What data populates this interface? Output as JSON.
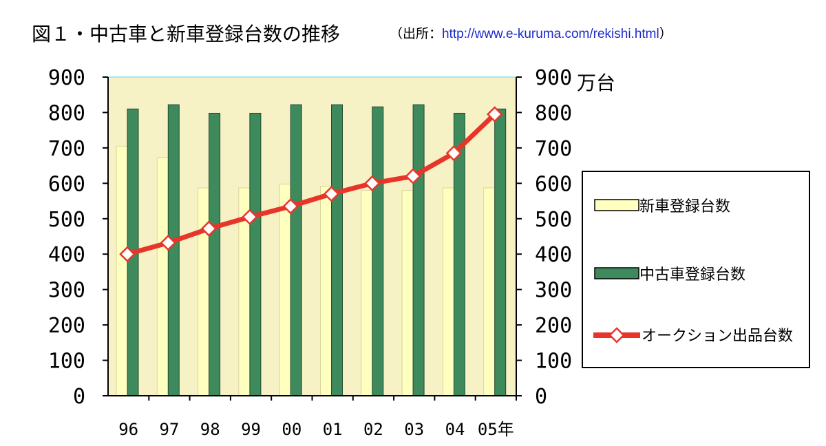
{
  "title": "図１・中古車と新車登録台数の推移",
  "source": {
    "prefix": "（出所：",
    "url": "http://www.e-kuruma.com/rekishi.html",
    "suffix": "）"
  },
  "chart_data": {
    "type": "bar",
    "categories": [
      "96",
      "97",
      "98",
      "99",
      "00",
      "01",
      "02",
      "03",
      "04",
      "05年"
    ],
    "ylim": [
      0,
      900
    ],
    "y_ticks": [
      "0",
      "100",
      "200",
      "300",
      "400",
      "500",
      "600",
      "700",
      "800",
      "900"
    ],
    "y2_ticks": [
      "0",
      "100",
      "200",
      "300",
      "400",
      "500",
      "600",
      "700",
      "800",
      "900"
    ],
    "y2_unit": "万台",
    "plot_background": "#f7f1c6",
    "grid": false,
    "legend_position": "right",
    "series": [
      {
        "name": "新車登録台数",
        "kind": "bar",
        "color": "#ffffc0",
        "values": [
          705,
          673,
          587,
          587,
          598,
          592,
          580,
          580,
          587,
          587
        ]
      },
      {
        "name": "中古車登録台数",
        "kind": "bar",
        "color": "#3e8a5c",
        "values": [
          810,
          822,
          798,
          798,
          822,
          822,
          816,
          822,
          798,
          810
        ]
      },
      {
        "name": "オークション出品台数",
        "kind": "line",
        "color": "#e8352a",
        "values": [
          400,
          432,
          472,
          505,
          535,
          570,
          600,
          620,
          685,
          795
        ]
      }
    ]
  }
}
